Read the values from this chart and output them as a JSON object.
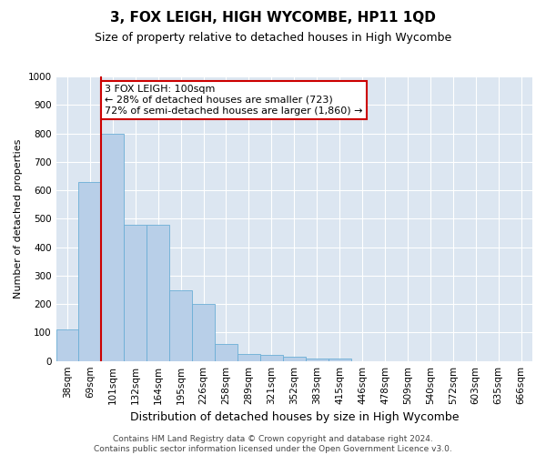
{
  "title": "3, FOX LEIGH, HIGH WYCOMBE, HP11 1QD",
  "subtitle": "Size of property relative to detached houses in High Wycombe",
  "xlabel": "Distribution of detached houses by size in High Wycombe",
  "ylabel": "Number of detached properties",
  "categories": [
    "38sqm",
    "69sqm",
    "101sqm",
    "132sqm",
    "164sqm",
    "195sqm",
    "226sqm",
    "258sqm",
    "289sqm",
    "321sqm",
    "352sqm",
    "383sqm",
    "415sqm",
    "446sqm",
    "478sqm",
    "509sqm",
    "540sqm",
    "572sqm",
    "603sqm",
    "635sqm",
    "666sqm"
  ],
  "values": [
    110,
    630,
    800,
    480,
    480,
    250,
    200,
    60,
    25,
    20,
    15,
    10,
    10,
    0,
    0,
    0,
    0,
    0,
    0,
    0,
    0
  ],
  "bar_color": "#b8cfe8",
  "bar_edge_color": "#6baed6",
  "vline_x_index": 2,
  "vline_color": "#cc0000",
  "annotation_text": "3 FOX LEIGH: 100sqm\n← 28% of detached houses are smaller (723)\n72% of semi-detached houses are larger (1,860) →",
  "annotation_box_facecolor": "#ffffff",
  "annotation_box_edgecolor": "#cc0000",
  "ylim": [
    0,
    1000
  ],
  "yticks": [
    0,
    100,
    200,
    300,
    400,
    500,
    600,
    700,
    800,
    900,
    1000
  ],
  "plot_bg_color": "#dce6f1",
  "title_fontsize": 11,
  "subtitle_fontsize": 9,
  "xlabel_fontsize": 9,
  "ylabel_fontsize": 8,
  "tick_fontsize": 7.5,
  "annotation_fontsize": 8,
  "footer_fontsize": 6.5
}
